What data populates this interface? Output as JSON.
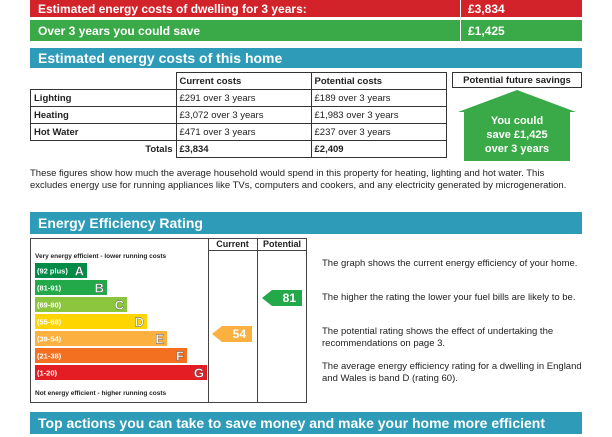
{
  "summary": {
    "row1": {
      "label": "Estimated energy costs of dwelling for 3 years:",
      "value": "£3,834",
      "color": "#d2232a"
    },
    "row2": {
      "label": "Over 3 years you could save",
      "value": "£1,425",
      "color": "#3aaa48"
    }
  },
  "costs_section": {
    "title": "Estimated energy costs of this home",
    "headers": {
      "current": "Current costs",
      "potential": "Potential costs",
      "savings": "Potential future savings"
    },
    "rows": [
      {
        "label": "Lighting",
        "current": "£291 over 3 years",
        "potential": "£189 over 3 years"
      },
      {
        "label": "Heating",
        "current": "£3,072 over 3 years",
        "potential": "£1,983 over 3 years"
      },
      {
        "label": "Hot Water",
        "current": "£471 over 3 years",
        "potential": "£237 over 3 years"
      }
    ],
    "totals": {
      "label": "Totals",
      "current": "£3,834",
      "potential": "£2,409"
    },
    "savings_badge": {
      "line1": "You could",
      "line2": "save £1,425",
      "line3": "over 3 years"
    },
    "note": "These figures show how much the average household would spend in this property for heating, lighting and hot water. This excludes energy use for running appliances like TVs, computers and cookers, and any electricity generated by microgeneration."
  },
  "rating_section": {
    "title": "Energy Efficiency Rating",
    "col_current": "Current",
    "col_potential": "Potential",
    "top_caption": "Very energy efficient - lower running costs",
    "bottom_caption": "Not energy efficient - higher running costs",
    "bands": [
      {
        "range": "(92 plus)",
        "letter": "A",
        "color": "#008c46"
      },
      {
        "range": "(81-91)",
        "letter": "B",
        "color": "#23a84a"
      },
      {
        "range": "(69-80)",
        "letter": "C",
        "color": "#8cc63f"
      },
      {
        "range": "(55-68)",
        "letter": "D",
        "color": "#ffd500"
      },
      {
        "range": "(39-54)",
        "letter": "E",
        "color": "#fbb040"
      },
      {
        "range": "(21-38)",
        "letter": "F",
        "color": "#f37021"
      },
      {
        "range": "(1-20)",
        "letter": "G",
        "color": "#e31d23"
      }
    ],
    "current_rating": {
      "value": "54",
      "band": "E",
      "color": "#fbb040"
    },
    "potential_rating": {
      "value": "81",
      "band": "B",
      "color": "#23a84a"
    },
    "explanations": [
      "The graph shows the current energy efficiency of your home.",
      "The higher the rating the lower your fuel bills are likely to be.",
      "The potential rating shows the effect of undertaking the recommendations on page 3.",
      "The average energy efficiency rating for a dwelling in England and Wales is band D (rating 60)."
    ]
  },
  "actions_section": {
    "title": "Top actions you can take to save money and make your home more efficient"
  }
}
